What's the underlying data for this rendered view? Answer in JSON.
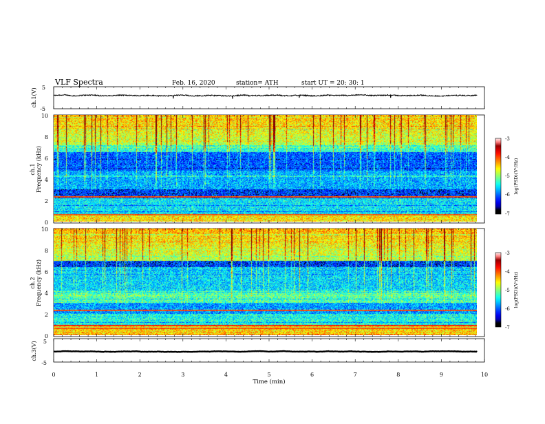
{
  "header": {
    "title": "VLF  Spectra",
    "date": "Feb. 16, 2020",
    "station": "station= ATH",
    "start_ut": "start  UT  =    20: 30: 1"
  },
  "chart_data": [
    {
      "type": "line",
      "id": "ch1-waveform",
      "ylabel": "ch.1(V)",
      "ylim": [
        -5,
        5
      ],
      "yticks": [
        "5",
        "-5"
      ],
      "xlim": [
        0,
        10
      ],
      "series": [
        {
          "level": 1.0,
          "noise": 0.45,
          "color": "#000000"
        }
      ]
    },
    {
      "type": "heatmap",
      "id": "ch1-spectrogram",
      "ylabel_top": "ch.1",
      "ylabel": "Frequency  (kHz)",
      "ylim": [
        0,
        10
      ],
      "yticks": [
        "0",
        "2",
        "4",
        "6",
        "8",
        "10"
      ],
      "xlim": [
        0,
        9.83
      ],
      "colorbar": {
        "label": "log(PSD)(V²/Hz)",
        "range": [
          -7,
          -3
        ],
        "ticks": [
          "-3",
          "-4",
          "-5",
          "-6",
          "-7"
        ]
      }
    },
    {
      "type": "heatmap",
      "id": "ch2-spectrogram",
      "ylabel_top": "ch.2",
      "ylabel": "Frequency  (kHz)",
      "ylim": [
        0,
        10
      ],
      "yticks": [
        "0",
        "2",
        "4",
        "6",
        "8",
        "10"
      ],
      "xlim": [
        0,
        9.83
      ],
      "colorbar": {
        "label": "log(PSD)(V²/Hz)",
        "range": [
          -7,
          -3
        ],
        "ticks": [
          "-3",
          "-4",
          "-5",
          "-6",
          "-7"
        ]
      }
    },
    {
      "type": "line",
      "id": "ch3-waveform",
      "ylabel": "ch.3(V)",
      "ylim": [
        -5,
        5
      ],
      "yticks": [
        "5",
        "-5"
      ],
      "xlim": [
        0,
        10
      ],
      "series": [
        {
          "level": -0.5,
          "noise": 0.08,
          "color": "#000000"
        }
      ]
    }
  ],
  "xaxis": {
    "label": "Time  (min)",
    "range": [
      0,
      10
    ],
    "ticks": [
      "0",
      "1",
      "2",
      "3",
      "4",
      "5",
      "6",
      "7",
      "8",
      "9",
      "10"
    ]
  }
}
